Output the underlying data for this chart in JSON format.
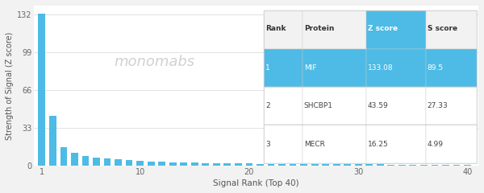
{
  "bar_color": "#4DBBE5",
  "bg_color": "#f2f2f2",
  "plot_bg_color": "#ffffff",
  "yticks": [
    0,
    33,
    66,
    99,
    132
  ],
  "xticks": [
    1,
    10,
    20,
    30,
    40
  ],
  "xlabel": "Signal Rank (Top 40)",
  "ylabel": "Strength of Signal (Z score)",
  "watermark": "monomabs",
  "table_header_bg": "#4DBBE5",
  "table_header_text": "#ffffff",
  "table_row1_bg": "#4DBBE5",
  "table_row1_text": "#ffffff",
  "table_row_bg": "#ffffff",
  "table_row_text": "#444444",
  "table_header": [
    "Rank",
    "Protein",
    "Z score",
    "S score"
  ],
  "table_data": [
    [
      "1",
      "MIF",
      "133.08",
      "89.5"
    ],
    [
      "2",
      "SHCBP1",
      "43.59",
      "27.33"
    ],
    [
      "3",
      "MECR",
      "16.25",
      "4.99"
    ]
  ],
  "z_scores": [
    133.08,
    43.59,
    16.25,
    11.2,
    8.5,
    7.1,
    6.2,
    5.5,
    4.9,
    4.3,
    3.8,
    3.4,
    3.1,
    2.9,
    2.7,
    2.5,
    2.3,
    2.1,
    2.0,
    1.9,
    1.8,
    1.7,
    1.6,
    1.55,
    1.5,
    1.45,
    1.4,
    1.35,
    1.3,
    1.25,
    1.2,
    1.15,
    1.1,
    1.05,
    1.0,
    0.95,
    0.9,
    0.85,
    0.8,
    0.75
  ],
  "n_bars": 40,
  "ylim": [
    0,
    140
  ],
  "xlim": [
    0.3,
    41
  ]
}
